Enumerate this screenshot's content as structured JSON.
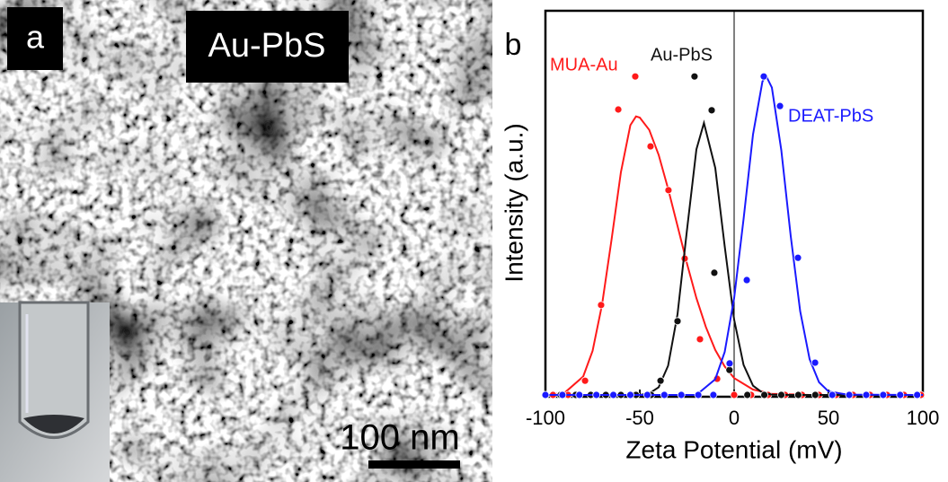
{
  "image": {
    "panel_label": "a",
    "label": "Au-PbS",
    "scale_bar": "100 nm"
  },
  "chart_data": {
    "type": "scatter",
    "panel_label": "b",
    "xlabel": "Zeta Potential (mV)",
    "ylabel": "Intensity (a.u.)",
    "xlim": [
      -100,
      100
    ],
    "xticks": [
      -100,
      -50,
      0,
      50,
      100
    ],
    "ylim": [
      0,
      100
    ],
    "vline": 0,
    "series": [
      {
        "name": "MUA-Au",
        "color": "#ff1a1a",
        "x": [
          -100,
          -96,
          -92,
          -88,
          -84,
          -79,
          -70.5,
          -61.4,
          -52.4,
          -44.3,
          -34.8,
          -26.2,
          -18.1,
          -9,
          0,
          9,
          18,
          27,
          36,
          45,
          54,
          63,
          72,
          81,
          90,
          99
        ],
        "values": [
          0,
          0,
          0,
          0,
          0,
          3.7,
          23.4,
          74.3,
          82.9,
          64.7,
          53.3,
          35.5,
          14.5,
          4.2,
          0,
          0,
          0,
          0,
          0,
          0,
          0,
          0,
          0,
          0,
          0,
          0
        ],
        "fit": {
          "x": [
            -100,
            -90,
            -80,
            -75,
            -70,
            -65,
            -60,
            -55,
            -52,
            -50,
            -45,
            -40,
            -35,
            -30,
            -25,
            -20,
            -15,
            -10,
            -5,
            0,
            10,
            20,
            40,
            100
          ],
          "values": [
            0,
            0.5,
            4.8,
            11.5,
            23.5,
            40.3,
            58,
            70.2,
            72.5,
            72.2,
            69,
            62.5,
            53.7,
            44,
            34.2,
            25.2,
            17.7,
            11.7,
            7.4,
            4.4,
            1.4,
            0.3,
            0,
            0
          ]
        }
      },
      {
        "name": "Au-PbS",
        "color": "#111111",
        "x": [
          -100,
          -92,
          -84,
          -76,
          -68,
          -60,
          -52,
          -44,
          -39,
          -30,
          -21,
          -11.9,
          -10.5,
          -2.5,
          7,
          16,
          25,
          34,
          43,
          52,
          61,
          70,
          79,
          88,
          97
        ],
        "values": [
          0,
          0,
          0,
          0,
          0,
          0,
          0,
          0,
          3.7,
          19.2,
          82.9,
          74.1,
          31.8,
          6.5,
          0,
          0,
          0,
          0,
          0,
          0,
          0,
          0,
          0,
          0,
          0
        ],
        "fit": {
          "x": [
            -100,
            -50,
            -45,
            -40,
            -35,
            -30,
            -25,
            -20,
            -16,
            -10,
            -5,
            0,
            5,
            10,
            15,
            20,
            30,
            100
          ],
          "values": [
            0,
            0,
            0.4,
            2,
            7.6,
            21,
            42.9,
            63.9,
            70.8,
            59.1,
            38.7,
            19.6,
            7.8,
            2.4,
            0.6,
            0.1,
            0,
            0
          ]
        }
      },
      {
        "name": "DEAT-PbS",
        "color": "#1a1aff",
        "x": [
          -100,
          -91,
          -82,
          -73,
          -64,
          -55,
          -46,
          -37,
          -28,
          -19,
          -11,
          -2.4,
          6.7,
          15.7,
          24.3,
          33.8,
          42.9,
          52,
          61,
          70,
          79,
          88,
          97
        ],
        "values": [
          0,
          0,
          0,
          0,
          0,
          0,
          0,
          0,
          0,
          0,
          0,
          8.2,
          29.9,
          82.9,
          75.2,
          35.7,
          8.4,
          0,
          0,
          0,
          0,
          0,
          0
        ],
        "fit": {
          "x": [
            -100,
            -20,
            -10,
            -5,
            0,
            5,
            10,
            15,
            17,
            20,
            25,
            30,
            35,
            40,
            45,
            50,
            60,
            100
          ],
          "values": [
            0,
            0,
            4.1,
            11.2,
            25.2,
            45.8,
            67.8,
            81.6,
            83,
            80,
            63.7,
            41.3,
            21.8,
            9.3,
            3.3,
            0.9,
            0.1,
            0
          ]
        }
      }
    ]
  }
}
